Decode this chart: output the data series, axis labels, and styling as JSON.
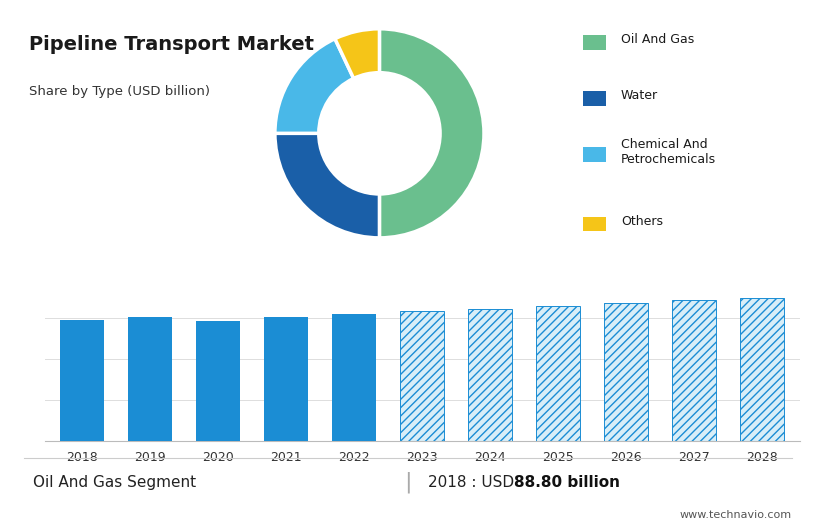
{
  "title": "Pipeline Transport Market",
  "subtitle": "Share by Type (USD billion)",
  "background_top": "#cdd5e3",
  "pie_values": [
    50,
    25,
    18,
    7
  ],
  "pie_colors": [
    "#6abf8e",
    "#1a5fa8",
    "#49b8e8",
    "#f5c518"
  ],
  "pie_labels": [
    "Oil And Gas",
    "Water",
    "Chemical And\nPetrochemicals",
    "Others"
  ],
  "legend_labels": [
    "Oil And Gas",
    "Water",
    "Chemical And\nPetrochemicals",
    "Others"
  ],
  "bar_years": [
    2018,
    2019,
    2020,
    2021,
    2022,
    2023,
    2024,
    2025,
    2026,
    2027,
    2028
  ],
  "bar_values_solid": [
    88.8,
    90.5,
    88.0,
    91.0,
    93.0,
    95,
    97,
    99,
    101,
    103,
    105
  ],
  "bar_color_solid": "#1b8dd4",
  "bar_color_hatched_fill": "#d8eef8",
  "bar_color_hatched_edge": "#1b8dd4",
  "footer_left": "Oil And Gas Segment",
  "footer_right_prefix": "2018 : USD ",
  "footer_right_value": "88.80 billion",
  "footer_url": "www.technavio.com",
  "divider_year": 2022,
  "ymin": 0,
  "ymax": 120,
  "hatch_pattern": "////"
}
